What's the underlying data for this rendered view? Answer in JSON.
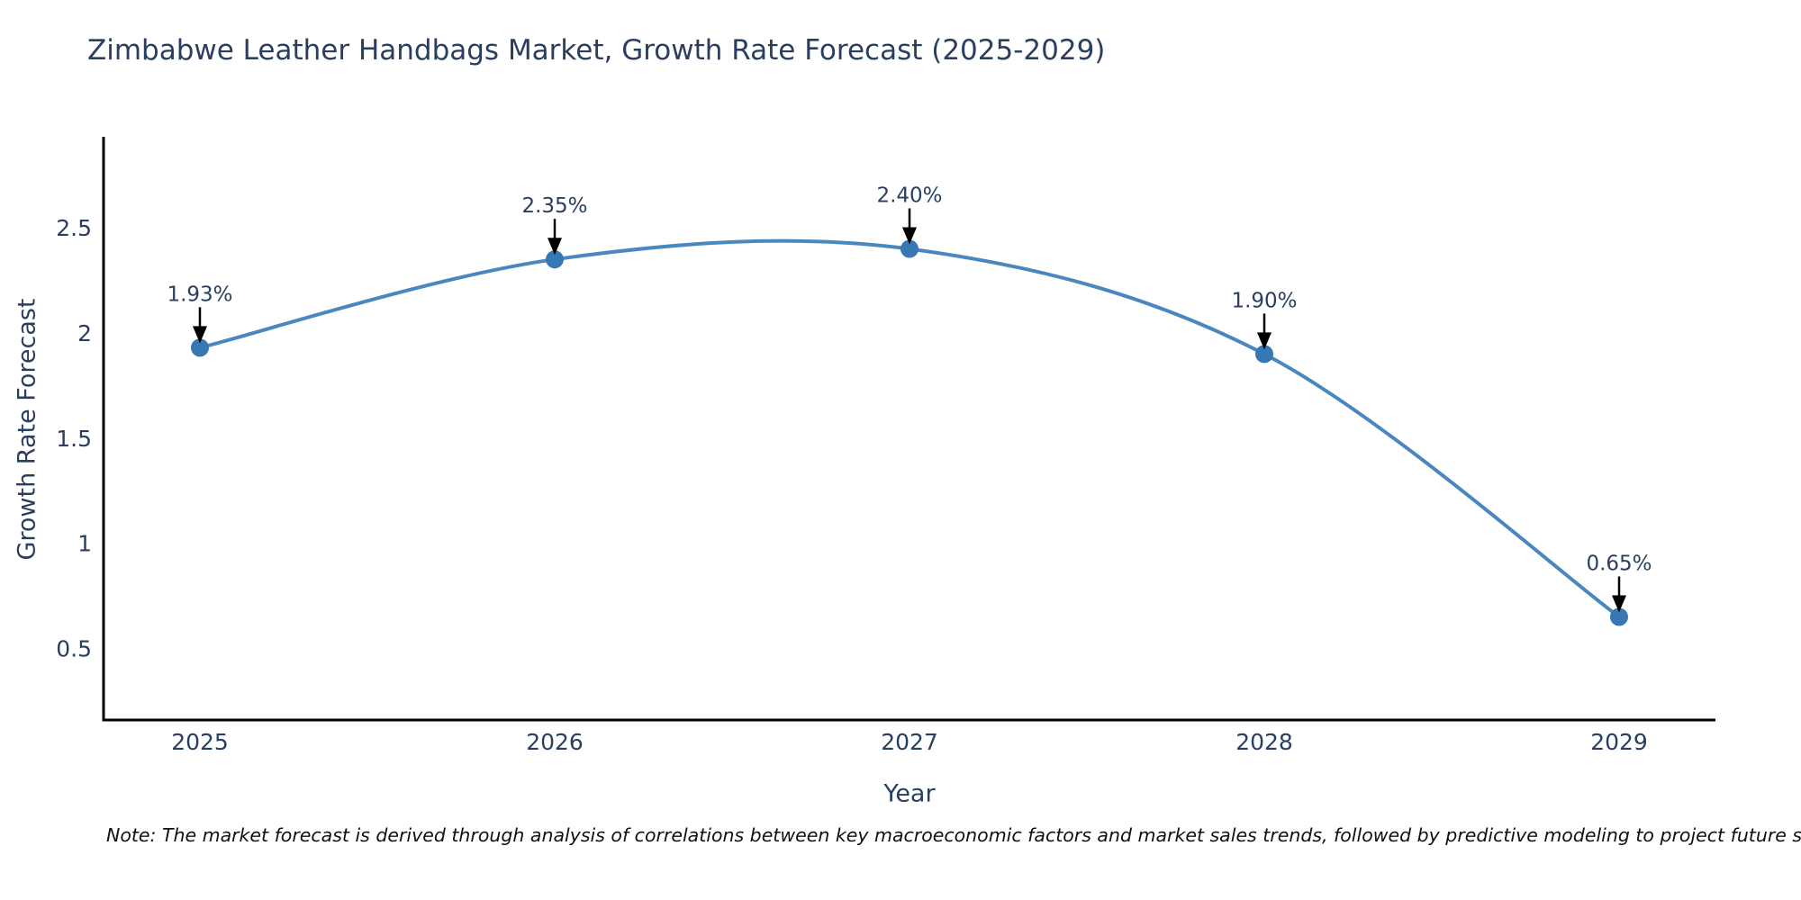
{
  "title": "Zimbabwe Leather Handbags Market, Growth Rate Forecast (2025-2029)",
  "note": "Note: The market forecast is derived through analysis of correlations between key macroeconomic factors and market sales trends, followed by predictive modeling to project future sales",
  "chart_data": {
    "type": "line",
    "line_shape": "spline",
    "x": [
      "2025",
      "2026",
      "2027",
      "2028",
      "2029"
    ],
    "values": [
      1.93,
      2.35,
      2.4,
      1.9,
      0.65
    ],
    "point_labels": [
      "1.93%",
      "2.35%",
      "2.40%",
      "1.90%",
      "0.65%"
    ],
    "title": "Zimbabwe Leather Handbags Market, Growth Rate Forecast (2025-2029)",
    "xlabel": "Year",
    "ylabel": "Growth Rate Forecast",
    "yticks": [
      0.5,
      1,
      1.5,
      2,
      2.5
    ],
    "ylim": [
      0.16,
      2.92
    ],
    "grid": false,
    "legend": "none",
    "annotation_style": "black-arrow-above-point",
    "colors": {
      "line": "#4a87c0",
      "marker": "#3777b4",
      "axis_line": "#000000",
      "tick_text": "#2a3f5f",
      "title_text": "#2a3f5f",
      "annotation_text": "#2a3f5f",
      "annotation_arrow": "#000000",
      "note_text": "#111111",
      "background": "#ffffff"
    }
  }
}
